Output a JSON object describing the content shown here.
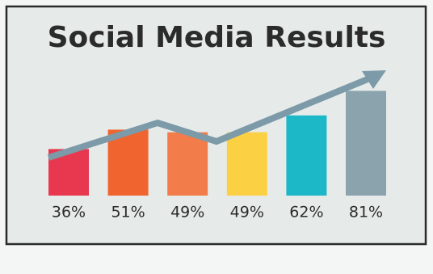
{
  "chart_data": {
    "type": "bar",
    "title": "Social Media Results",
    "categories": [
      null,
      null,
      null,
      null,
      null,
      null
    ],
    "values": [
      36,
      51,
      49,
      49,
      62,
      81
    ],
    "value_labels": [
      "36%",
      "51%",
      "49%",
      "49%",
      "62%",
      "81%"
    ],
    "colors": [
      "#e8384f",
      "#f0652f",
      "#f27d4b",
      "#fcd043",
      "#1cb8c8",
      "#8ba3ad"
    ]
  }
}
